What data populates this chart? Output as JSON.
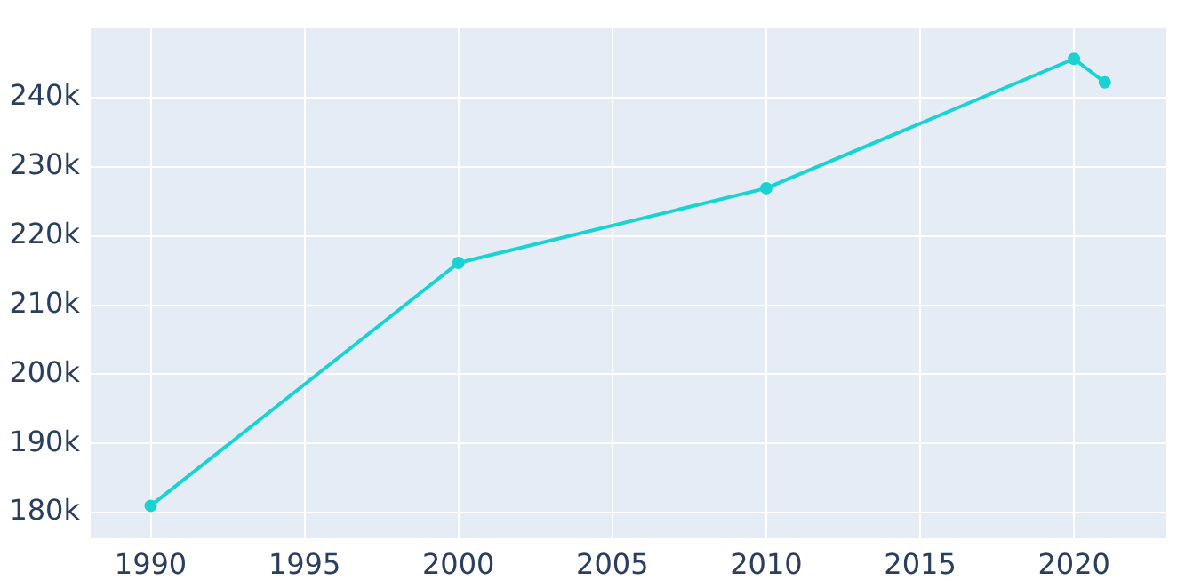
{
  "chart_data": {
    "type": "line",
    "x": [
      1990,
      2000,
      2010,
      2020,
      2021
    ],
    "series": [
      {
        "color": "#19d3d3",
        "values": [
          181000,
          216100,
          226900,
          245600,
          242200
        ]
      }
    ],
    "xlim": [
      1988.05,
      2023
    ],
    "xticks": [
      1990,
      1995,
      2000,
      2005,
      2010,
      2015,
      2020
    ],
    "ylim": [
      176300,
      250100
    ],
    "yticks": [
      {
        "value": 180000,
        "label": "180k"
      },
      {
        "value": 190000,
        "label": "190k"
      },
      {
        "value": 200000,
        "label": "200k"
      },
      {
        "value": 210000,
        "label": "210k"
      },
      {
        "value": 220000,
        "label": "220k"
      },
      {
        "value": 230000,
        "label": "230k"
      },
      {
        "value": 240000,
        "label": "240k"
      }
    ],
    "grid": true,
    "marker": "circle",
    "line_style": "solid",
    "legend": false
  }
}
